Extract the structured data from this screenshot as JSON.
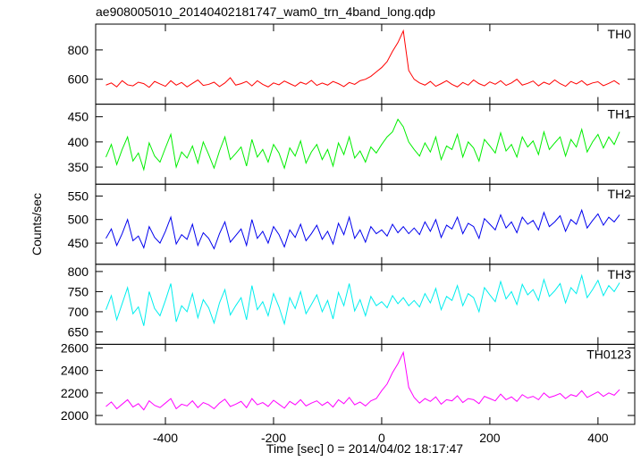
{
  "chart_data": {
    "type": "line",
    "title": "ae908005010_20140402181747_wam0_trn_4band_long.qdp",
    "xlabel": "Time [sec] 0 = 2014/04/02 18:17:47",
    "ylabel": "Counts/sec",
    "xlim": [
      -529,
      468
    ],
    "xticks": [
      -400,
      -200,
      0,
      200,
      400
    ],
    "x": [
      -510,
      -500,
      -490,
      -480,
      -470,
      -460,
      -450,
      -440,
      -430,
      -420,
      -410,
      -400,
      -390,
      -380,
      -370,
      -360,
      -350,
      -340,
      -330,
      -320,
      -310,
      -300,
      -290,
      -280,
      -270,
      -260,
      -250,
      -240,
      -230,
      -220,
      -210,
      -200,
      -190,
      -180,
      -170,
      -160,
      -150,
      -140,
      -130,
      -120,
      -110,
      -100,
      -90,
      -80,
      -70,
      -60,
      -50,
      -40,
      -30,
      -20,
      -10,
      0,
      10,
      20,
      30,
      40,
      50,
      60,
      70,
      80,
      90,
      100,
      110,
      120,
      130,
      140,
      150,
      160,
      170,
      180,
      190,
      200,
      210,
      220,
      230,
      240,
      250,
      260,
      270,
      280,
      290,
      300,
      310,
      320,
      330,
      340,
      350,
      360,
      370,
      380,
      390,
      400,
      410,
      420,
      430,
      440
    ],
    "series": [
      {
        "name": "TH0",
        "color": "#ff0000",
        "ylim": [
          430,
          976
        ],
        "yticks": [
          600,
          800
        ],
        "values": [
          560,
          575,
          548,
          590,
          562,
          555,
          580,
          570,
          545,
          585,
          568,
          552,
          590,
          560,
          578,
          548,
          572,
          595,
          558,
          565,
          580,
          550,
          575,
          610,
          560,
          570,
          585,
          555,
          590,
          565,
          548,
          575,
          562,
          588,
          570,
          553,
          580,
          566,
          592,
          558,
          574,
          560,
          585,
          570,
          550,
          578,
          565,
          590,
          600,
          620,
          650,
          680,
          720,
          790,
          850,
          930,
          660,
          600,
          575,
          560,
          585,
          552,
          570,
          590,
          565,
          548,
          578,
          560,
          595,
          570,
          555,
          582,
          566,
          590,
          558,
          575,
          600,
          560,
          572,
          588,
          555,
          580,
          565,
          595,
          570,
          552,
          585,
          568,
          590,
          560,
          575,
          583,
          556,
          572,
          590,
          565
        ]
      },
      {
        "name": "TH1",
        "color": "#00ee00",
        "ylim": [
          316,
          475
        ],
        "yticks": [
          350,
          400,
          450
        ],
        "values": [
          370,
          395,
          355,
          385,
          410,
          362,
          378,
          345,
          398,
          372,
          360,
          388,
          415,
          350,
          380,
          368,
          392,
          358,
          400,
          375,
          348,
          382,
          410,
          365,
          377,
          390,
          352,
          405,
          370,
          385,
          360,
          395,
          378,
          348,
          388,
          372,
          402,
          358,
          380,
          395,
          365,
          385,
          352,
          398,
          375,
          410,
          368,
          382,
          360,
          390,
          378,
          395,
          410,
          420,
          445,
          430,
          400,
          385,
          372,
          398,
          380,
          410,
          365,
          392,
          385,
          415,
          370,
          400,
          388,
          362,
          405,
          392,
          378,
          418,
          382,
          395,
          370,
          410,
          390,
          402,
          375,
          420,
          385,
          398,
          410,
          372,
          405,
          390,
          425,
          380,
          400,
          415,
          388,
          410,
          395,
          420
        ]
      },
      {
        "name": "TH2",
        "color": "#0000ee",
        "ylim": [
          405,
          575
        ],
        "yticks": [
          450,
          500,
          550
        ],
        "values": [
          460,
          480,
          445,
          470,
          500,
          455,
          465,
          440,
          485,
          462,
          450,
          475,
          505,
          448,
          468,
          458,
          490,
          445,
          472,
          460,
          438,
          470,
          495,
          452,
          466,
          480,
          445,
          500,
          460,
          475,
          450,
          485,
          468,
          442,
          478,
          462,
          490,
          455,
          470,
          488,
          458,
          475,
          448,
          492,
          468,
          505,
          460,
          478,
          452,
          485,
          470,
          478,
          465,
          490,
          472,
          485,
          470,
          482,
          468,
          495,
          475,
          500,
          462,
          488,
          480,
          505,
          470,
          492,
          485,
          460,
          502,
          490,
          478,
          510,
          482,
          495,
          472,
          505,
          490,
          498,
          478,
          515,
          485,
          495,
          508,
          475,
          500,
          490,
          520,
          482,
          498,
          512,
          488,
          505,
          495,
          510
        ]
      },
      {
        "name": "TH3",
        "color": "#00eeee",
        "ylim": [
          619,
          818
        ],
        "yticks": [
          650,
          700,
          750,
          800
        ],
        "values": [
          705,
          740,
          680,
          720,
          760,
          695,
          712,
          665,
          750,
          708,
          690,
          728,
          770,
          675,
          715,
          700,
          745,
          685,
          730,
          710,
          672,
          722,
          755,
          692,
          715,
          735,
          680,
          765,
          705,
          725,
          690,
          745,
          712,
          670,
          735,
          708,
          750,
          695,
          718,
          742,
          700,
          728,
          682,
          748,
          715,
          770,
          702,
          730,
          690,
          738,
          715,
          725,
          710,
          740,
          720,
          735,
          715,
          728,
          712,
          745,
          722,
          758,
          705,
          738,
          728,
          765,
          715,
          745,
          735,
          700,
          760,
          742,
          725,
          775,
          732,
          750,
          718,
          768,
          742,
          755,
          728,
          780,
          738,
          752,
          770,
          722,
          760,
          745,
          790,
          735,
          755,
          778,
          740,
          765,
          750,
          772
        ]
      },
      {
        "name": "TH0123",
        "color": "#ff00ff",
        "ylim": [
          1921,
          2632
        ],
        "yticks": [
          2000,
          2200,
          2400,
          2600
        ],
        "values": [
          2080,
          2120,
          2060,
          2100,
          2140,
          2075,
          2105,
          2050,
          2130,
          2090,
          2070,
          2110,
          2150,
          2060,
          2100,
          2085,
          2130,
          2070,
          2115,
          2095,
          2060,
          2110,
          2145,
          2080,
          2100,
          2125,
          2070,
          2150,
          2095,
          2115,
          2080,
          2135,
          2100,
          2065,
          2125,
          2095,
          2140,
          2085,
          2110,
          2130,
          2090,
          2120,
          2075,
          2140,
          2105,
          2160,
          2095,
          2120,
          2085,
          2130,
          2150,
          2220,
          2280,
          2380,
          2460,
          2560,
          2250,
          2160,
          2110,
          2150,
          2125,
          2165,
          2100,
          2140,
          2130,
          2175,
          2115,
          2150,
          2140,
          2105,
          2170,
          2150,
          2130,
          2190,
          2140,
          2165,
          2125,
          2185,
          2155,
          2170,
          2140,
          2200,
          2160,
          2175,
          2195,
          2150,
          2185,
          2170,
          2220,
          2160,
          2185,
          2210,
          2170,
          2200,
          2180,
          2230
        ]
      }
    ]
  }
}
